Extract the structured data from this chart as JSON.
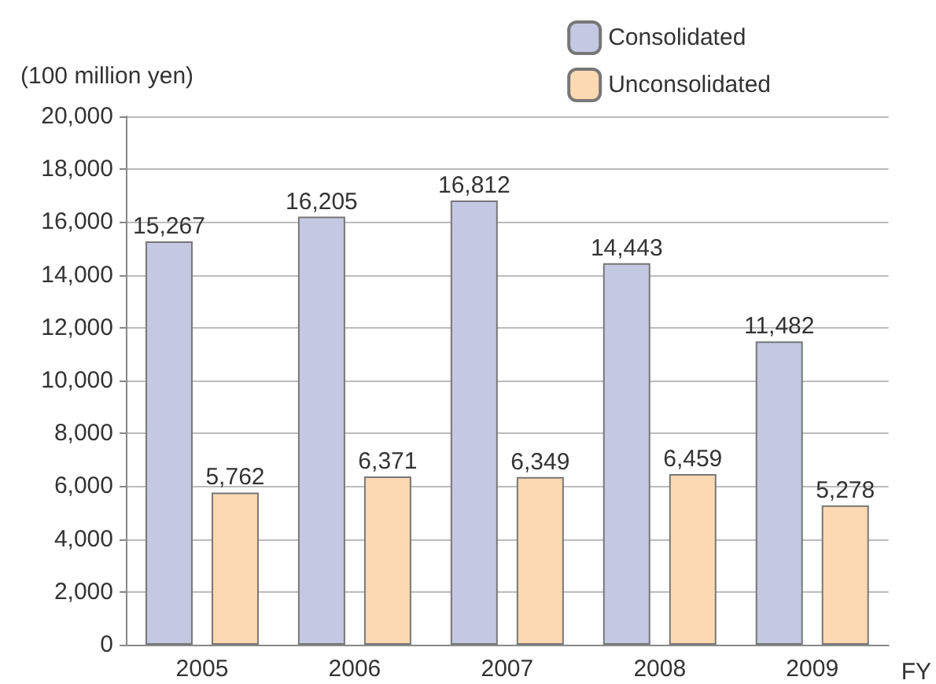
{
  "chart_data": {
    "type": "bar",
    "ylabel": "(100 million yen)",
    "xlabel": "FY",
    "categories": [
      "2005",
      "2006",
      "2007",
      "2008",
      "2009"
    ],
    "series": [
      {
        "name": "Consolidated",
        "color": "#c5c8e2",
        "values": [
          15267,
          16205,
          16812,
          14443,
          11482
        ],
        "value_labels": [
          "15,267",
          "16,205",
          "16,812",
          "14,443",
          "11,482"
        ]
      },
      {
        "name": "Unconsolidated",
        "color": "#fdd9b3",
        "values": [
          5762,
          6371,
          6349,
          6459,
          5278
        ],
        "value_labels": [
          "5,762",
          "6,371",
          "6,349",
          "6,459",
          "5,278"
        ]
      }
    ],
    "ylim": [
      0,
      20000
    ],
    "yticks": [
      0,
      {
        "value": 2000,
        "label": "2,000"
      },
      {
        "value": 4000,
        "label": "4,000"
      },
      {
        "value": 6000,
        "label": "6,000"
      },
      {
        "value": 8000,
        "label": "8,000"
      },
      {
        "value": 10000,
        "label": "10,000"
      },
      {
        "value": 12000,
        "label": "12,000"
      },
      {
        "value": 14000,
        "label": "14,000"
      },
      {
        "value": 16000,
        "label": "16,000"
      },
      {
        "value": 18000,
        "label": "18,000"
      },
      {
        "value": 20000,
        "label": "20,000"
      }
    ],
    "grid": "y",
    "legend": "top right"
  }
}
